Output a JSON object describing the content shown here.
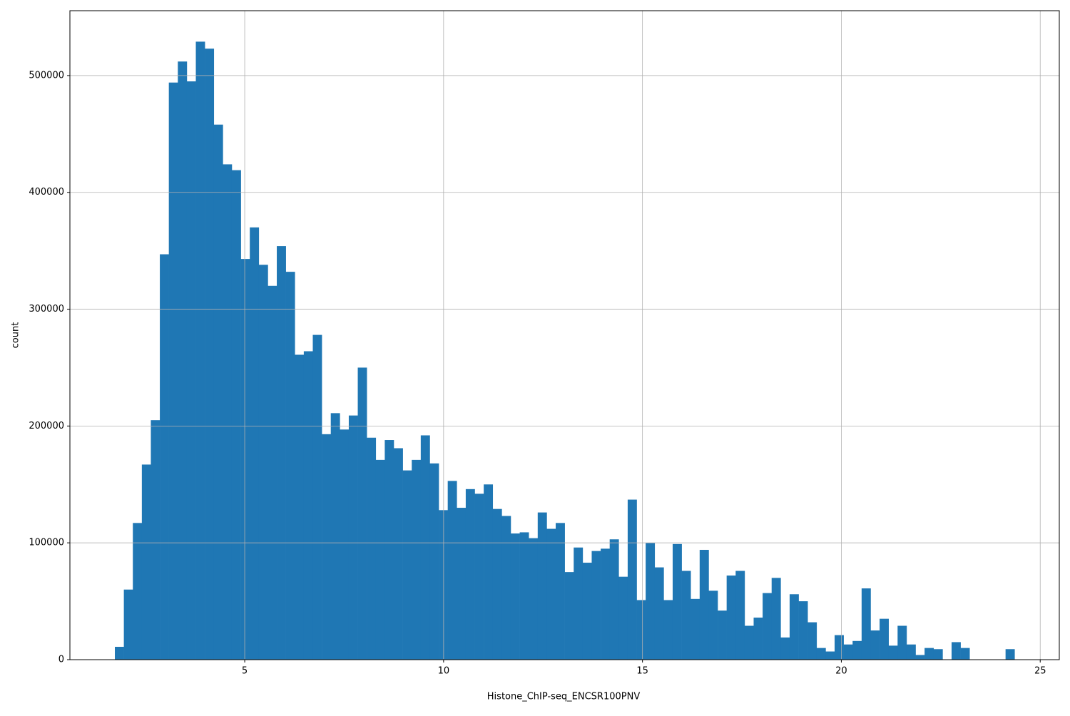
{
  "chart_data": {
    "type": "histogram",
    "xlabel": "Histone_ChIP-seq_ENCSR100PNV",
    "ylabel": "count",
    "color": "#1f77b4",
    "grid": true,
    "bins": [
      1.735,
      1.9612,
      2.1874,
      2.4136,
      2.6398,
      2.866,
      3.0922,
      3.3184,
      3.5446,
      3.7708,
      3.997,
      4.2232,
      4.4494,
      4.6756,
      4.9018,
      5.128,
      5.3542,
      5.5804,
      5.8066,
      6.0328,
      6.259,
      6.4852,
      6.7114,
      6.9376,
      7.1638,
      7.39,
      7.6162,
      7.8424,
      8.0686,
      8.2948,
      8.521,
      8.7472,
      8.9734,
      9.1996,
      9.4258,
      9.652,
      9.8782,
      10.1044,
      10.3306,
      10.5568,
      10.783,
      11.0092,
      11.2354,
      11.4616,
      11.6878,
      11.914,
      12.1402,
      12.3664,
      12.5926,
      12.8188,
      13.045,
      13.2712,
      13.4974,
      13.7236,
      13.9498,
      14.176,
      14.4022,
      14.6284,
      14.8546,
      15.0808,
      15.307,
      15.5332,
      15.7594,
      15.9856,
      16.2118,
      16.438,
      16.6642,
      16.8904,
      17.1166,
      17.3428,
      17.569,
      17.7952,
      18.0214,
      18.2476,
      18.4738,
      18.7,
      18.9262,
      19.1524,
      19.3786,
      19.6048,
      19.831,
      20.0572,
      20.2834,
      20.5096,
      20.7358,
      20.962,
      21.1882,
      21.4144,
      21.6406,
      21.8668,
      22.093,
      22.3192,
      22.5454,
      22.7716,
      22.9978,
      23.224,
      23.4502,
      23.6764,
      23.9026,
      24.1288,
      24.355
    ],
    "counts": [
      11000,
      60000,
      117000,
      167000,
      205000,
      347000,
      494000,
      512000,
      495000,
      529000,
      523000,
      458000,
      424000,
      419000,
      343000,
      370000,
      338000,
      320000,
      354000,
      332000,
      261000,
      264000,
      278000,
      193000,
      211000,
      197000,
      209000,
      250000,
      190000,
      171000,
      188000,
      181000,
      162000,
      171000,
      192000,
      168000,
      128000,
      153000,
      130000,
      146000,
      142000,
      150000,
      129000,
      123000,
      108000,
      109000,
      104000,
      126000,
      112000,
      117000,
      75000,
      96000,
      83000,
      93000,
      95000,
      103000,
      71000,
      137000,
      51000,
      100000,
      79000,
      51000,
      99000,
      76000,
      52000,
      94000,
      59000,
      42000,
      72000,
      76000,
      29000,
      36000,
      57000,
      70000,
      19000,
      56000,
      50000,
      32000,
      10000,
      7000,
      21000,
      13000,
      16000,
      61000,
      25000,
      35000,
      12000,
      29000,
      13000,
      4000,
      10000,
      9000,
      0,
      15000,
      10000,
      0,
      0,
      0,
      0,
      9000
    ],
    "xlim": [
      0.605,
      25.48
    ],
    "ylim": [
      0,
      555500
    ],
    "xticks": [
      5,
      10,
      15,
      20,
      25
    ],
    "yticks": [
      0,
      100000,
      200000,
      300000,
      400000,
      500000
    ]
  }
}
